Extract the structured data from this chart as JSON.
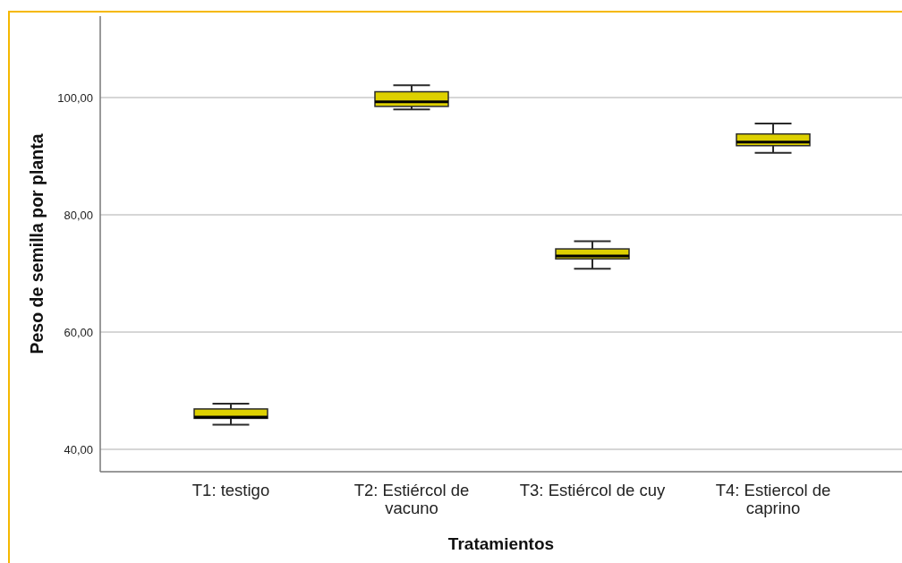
{
  "chart_data": {
    "type": "box",
    "xlabel": "Tratamientos",
    "ylabel": "Peso de semilla por planta",
    "categories": [
      "T1: testigo",
      "T2: Estiércol de vacuno",
      "T3: Estiércol de cuy",
      "T4: Estiercol de caprino"
    ],
    "boxes": [
      {
        "low": 44.2,
        "q1": 45.3,
        "median": 45.5,
        "q3": 46.9,
        "high": 47.8
      },
      {
        "low": 98.0,
        "q1": 98.5,
        "median": 99.3,
        "q3": 101.0,
        "high": 102.1
      },
      {
        "low": 70.8,
        "q1": 72.5,
        "median": 73.0,
        "q3": 74.2,
        "high": 75.5
      },
      {
        "low": 90.6,
        "q1": 91.8,
        "median": 92.4,
        "q3": 93.8,
        "high": 95.6
      }
    ],
    "color": "#ddd000",
    "ylim": [
      36.2,
      113.9
    ],
    "yticks": [
      {
        "value": 40,
        "label": "40,00"
      },
      {
        "value": 60,
        "label": "60,00"
      },
      {
        "value": 80,
        "label": "80,00"
      },
      {
        "value": 100,
        "label": "100,00"
      }
    ],
    "grid": "y"
  }
}
